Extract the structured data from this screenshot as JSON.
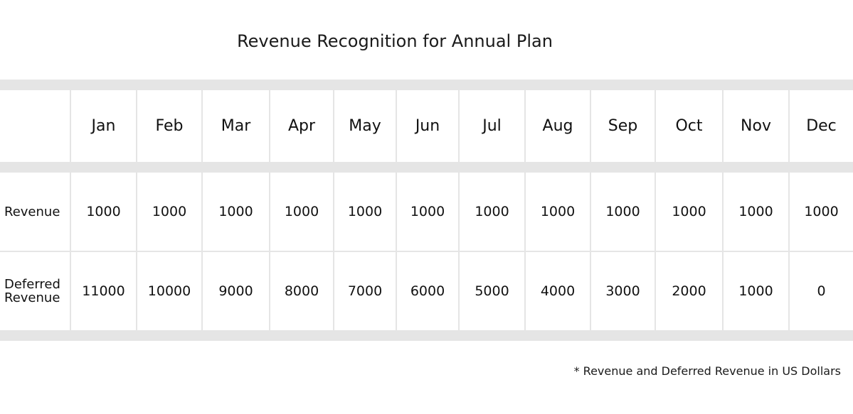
{
  "title": "Revenue Recognition for Annual Plan",
  "table": {
    "corner": "",
    "months": [
      "Jan",
      "Feb",
      "Mar",
      "Apr",
      "May",
      "Jun",
      "Jul",
      "Aug",
      "Sep",
      "Oct",
      "Nov",
      "Dec"
    ],
    "rows": [
      {
        "label": "Revenue",
        "values": [
          "1000",
          "1000",
          "1000",
          "1000",
          "1000",
          "1000",
          "1000",
          "1000",
          "1000",
          "1000",
          "1000",
          "1000"
        ]
      },
      {
        "label_line1": "Deferred",
        "label_line2": "Revenue",
        "values": [
          "11000",
          "10000",
          "9000",
          "8000",
          "7000",
          "6000",
          "5000",
          "4000",
          "3000",
          "2000",
          "1000",
          "0"
        ]
      }
    ]
  },
  "footnote": "* Revenue and Deferred Revenue in US Dollars"
}
